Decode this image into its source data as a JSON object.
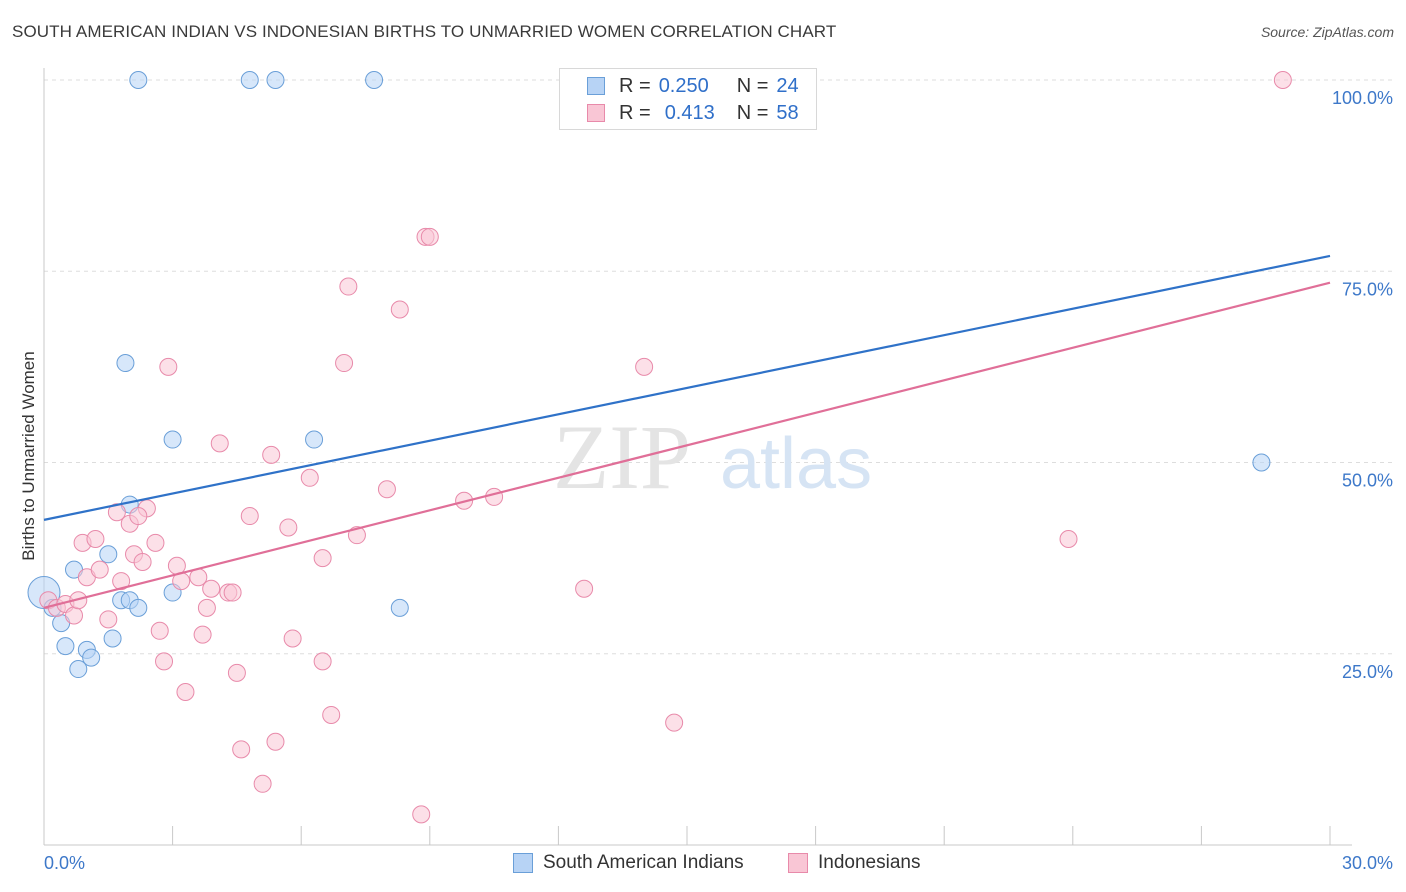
{
  "header": {
    "title": "SOUTH AMERICAN INDIAN VS INDONESIAN BIRTHS TO UNMARRIED WOMEN CORRELATION CHART",
    "source": "Source: ZipAtlas.com"
  },
  "watermark": {
    "zip": "ZIP",
    "atlas": "atlas"
  },
  "legend": {
    "rows": [
      {
        "r_label": "R =",
        "r_value": "0.250",
        "n_label": "N =",
        "n_value": "24",
        "color": "#b7d3f5"
      },
      {
        "r_label": "R =",
        "r_value": "0.413",
        "n_label": "N =",
        "n_value": "58",
        "color": "#f9c6d5"
      }
    ]
  },
  "chart_data": {
    "type": "scatter",
    "title": "SOUTH AMERICAN INDIAN VS INDONESIAN BIRTHS TO UNMARRIED WOMEN CORRELATION CHART",
    "xlabel": "",
    "ylabel": "Births to Unmarried Women",
    "xlim": [
      0,
      30
    ],
    "ylim": [
      0,
      100
    ],
    "x_tick_labels": [
      "0.0%",
      "30.0%"
    ],
    "y_tick_labels": [
      "25.0%",
      "50.0%",
      "75.0%",
      "100.0%"
    ],
    "y_ticks": [
      25,
      50,
      75,
      100
    ],
    "x_ticks": [
      0,
      3,
      6,
      9,
      12,
      15,
      18,
      21,
      24,
      27,
      30
    ],
    "grid": true,
    "series": [
      {
        "name": "South American Indians",
        "color": "#6a9fd8",
        "fill": "#b7d3f5",
        "line_color": "#2f72c8",
        "trend": [
          [
            0,
            42.5
          ],
          [
            30,
            77.0
          ]
        ],
        "points": [
          [
            0.0,
            33.0
          ],
          [
            0.2,
            31.0
          ],
          [
            0.4,
            29.0
          ],
          [
            0.5,
            26.0
          ],
          [
            0.7,
            36.0
          ],
          [
            0.8,
            23.0
          ],
          [
            1.0,
            25.5
          ],
          [
            1.1,
            24.5
          ],
          [
            1.5,
            38.0
          ],
          [
            1.6,
            27.0
          ],
          [
            1.8,
            32.0
          ],
          [
            1.9,
            63.0
          ],
          [
            2.0,
            32.0
          ],
          [
            2.0,
            44.5
          ],
          [
            2.2,
            100.0
          ],
          [
            2.2,
            31.0
          ],
          [
            3.0,
            33.0
          ],
          [
            3.0,
            53.0
          ],
          [
            4.8,
            100.0
          ],
          [
            5.4,
            100.0
          ],
          [
            6.3,
            53.0
          ],
          [
            7.7,
            100.0
          ],
          [
            8.3,
            31.0
          ],
          [
            28.4,
            50.0
          ]
        ]
      },
      {
        "name": "Indonesians",
        "color": "#e88aaa",
        "fill": "#f9c6d5",
        "line_color": "#e06f98",
        "trend": [
          [
            0,
            31.0
          ],
          [
            30,
            73.5
          ]
        ],
        "points": [
          [
            0.1,
            32.0
          ],
          [
            0.3,
            31.0
          ],
          [
            0.5,
            31.5
          ],
          [
            0.7,
            30.0
          ],
          [
            0.8,
            32.0
          ],
          [
            0.9,
            39.5
          ],
          [
            1.0,
            35.0
          ],
          [
            1.2,
            40.0
          ],
          [
            1.3,
            36.0
          ],
          [
            1.5,
            29.5
          ],
          [
            1.7,
            43.5
          ],
          [
            1.8,
            34.5
          ],
          [
            2.0,
            42.0
          ],
          [
            2.1,
            38.0
          ],
          [
            2.3,
            37.0
          ],
          [
            2.4,
            44.0
          ],
          [
            2.6,
            39.5
          ],
          [
            2.7,
            28.0
          ],
          [
            2.8,
            24.0
          ],
          [
            2.9,
            62.5
          ],
          [
            3.1,
            36.5
          ],
          [
            3.2,
            34.5
          ],
          [
            3.3,
            20.0
          ],
          [
            3.6,
            35.0
          ],
          [
            3.7,
            27.5
          ],
          [
            3.8,
            31.0
          ],
          [
            3.9,
            33.5
          ],
          [
            4.1,
            52.5
          ],
          [
            4.3,
            33.0
          ],
          [
            4.4,
            33.0
          ],
          [
            4.5,
            22.5
          ],
          [
            4.6,
            12.5
          ],
          [
            4.8,
            43.0
          ],
          [
            5.1,
            8.0
          ],
          [
            5.3,
            51.0
          ],
          [
            5.4,
            13.5
          ],
          [
            5.7,
            41.5
          ],
          [
            5.8,
            27.0
          ],
          [
            6.2,
            48.0
          ],
          [
            6.5,
            37.5
          ],
          [
            6.5,
            24.0
          ],
          [
            6.7,
            17.0
          ],
          [
            7.0,
            63.0
          ],
          [
            7.1,
            73.0
          ],
          [
            7.3,
            40.5
          ],
          [
            8.0,
            46.5
          ],
          [
            8.3,
            70.0
          ],
          [
            8.8,
            4.0
          ],
          [
            8.9,
            79.5
          ],
          [
            9.0,
            79.5
          ],
          [
            9.8,
            45.0
          ],
          [
            10.5,
            45.5
          ],
          [
            12.6,
            33.5
          ],
          [
            14.0,
            62.5
          ],
          [
            14.7,
            16.0
          ],
          [
            23.9,
            40.0
          ],
          [
            28.9,
            100.0
          ],
          [
            2.2,
            43.0
          ]
        ]
      }
    ]
  }
}
